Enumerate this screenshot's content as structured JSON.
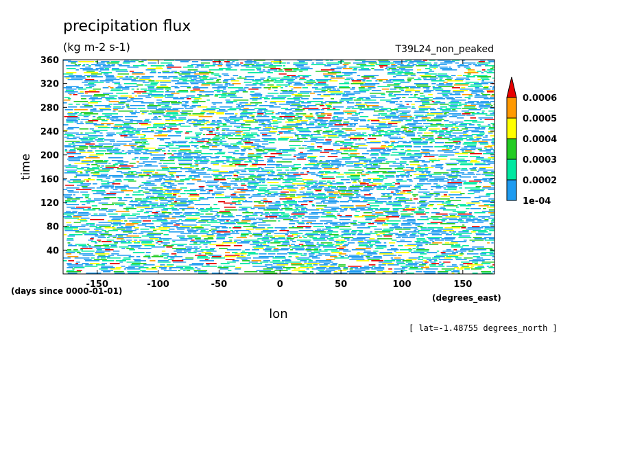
{
  "chart_data": {
    "type": "heatmap",
    "title": "precipitation flux",
    "units": "(kg m-2 s-1)",
    "dataset": "T39L24_non_peaked",
    "xlabel": "lon",
    "ylabel": "time",
    "x_units": "(degrees_east)",
    "y_units": "(days since 0000-01-01)",
    "footnote": "[ lat=-1.48755 degrees_north ]",
    "xlim": [
      -178,
      176
    ],
    "ylim": [
      0,
      360
    ],
    "x_ticks": [
      -150,
      -100,
      -50,
      0,
      50,
      100,
      150
    ],
    "x_tick_labels": [
      "-150",
      "-100",
      "-50",
      "0",
      "50",
      "100",
      "150"
    ],
    "y_ticks": [
      40,
      80,
      120,
      160,
      200,
      240,
      280,
      320,
      360
    ],
    "y_tick_labels": [
      "40",
      "80",
      "120",
      "160",
      "200",
      "240",
      "280",
      "320",
      "360"
    ],
    "colorbar": {
      "levels": [
        0.0001,
        0.0002,
        0.0003,
        0.0004,
        0.0005,
        0.0006
      ],
      "level_labels": [
        "1e-04",
        "0.0002",
        "0.0003",
        "0.0004",
        "0.0005",
        "0.0006"
      ],
      "colors": [
        "#1e9bf0",
        "#00e8a0",
        "#22cc22",
        "#ffff00",
        "#ff9900",
        "#e60000"
      ],
      "extend": "max"
    }
  }
}
